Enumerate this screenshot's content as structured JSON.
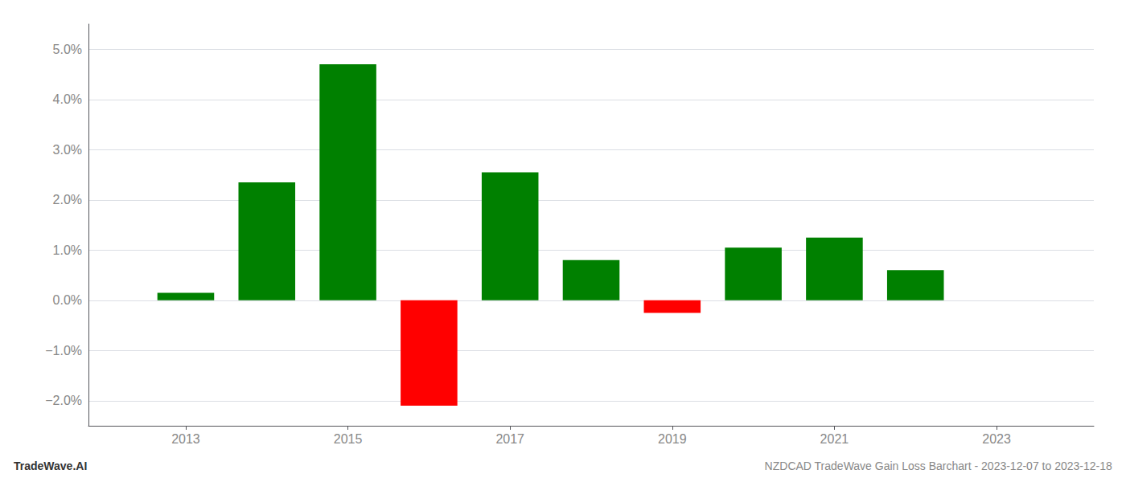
{
  "chart_data": {
    "type": "bar",
    "title": "NZDCAD TradeWave Gain Loss Barchart - 2023-12-07 to 2023-12-18",
    "annotations": [
      "TradeWave.AI"
    ],
    "x": [
      2013,
      2014,
      2015,
      2016,
      2017,
      2018,
      2019,
      2020,
      2021,
      2022
    ],
    "values": [
      0.0015,
      0.0235,
      0.047,
      -0.021,
      0.0255,
      0.008,
      -0.0025,
      0.0105,
      0.0125,
      0.006
    ],
    "colors": [
      "#008000",
      "#008000",
      "#008000",
      "#ff0000",
      "#008000",
      "#008000",
      "#ff0000",
      "#008000",
      "#008000",
      "#008000"
    ],
    "xlim": [
      2011.8,
      2024.2
    ],
    "xticks": [
      2013,
      2015,
      2017,
      2019,
      2021,
      2023
    ],
    "ylim": [
      -0.025,
      0.055
    ],
    "yticks": [
      {
        "value": -0.02,
        "label": "−2.0%"
      },
      {
        "value": -0.01,
        "label": "−1.0%"
      },
      {
        "value": 0.0,
        "label": "0.0%"
      },
      {
        "value": 0.01,
        "label": "1.0%"
      },
      {
        "value": 0.02,
        "label": "2.0%"
      },
      {
        "value": 0.03,
        "label": "3.0%"
      },
      {
        "value": 0.04,
        "label": "4.0%"
      },
      {
        "value": 0.05,
        "label": "5.0%"
      }
    ],
    "grid": true
  }
}
